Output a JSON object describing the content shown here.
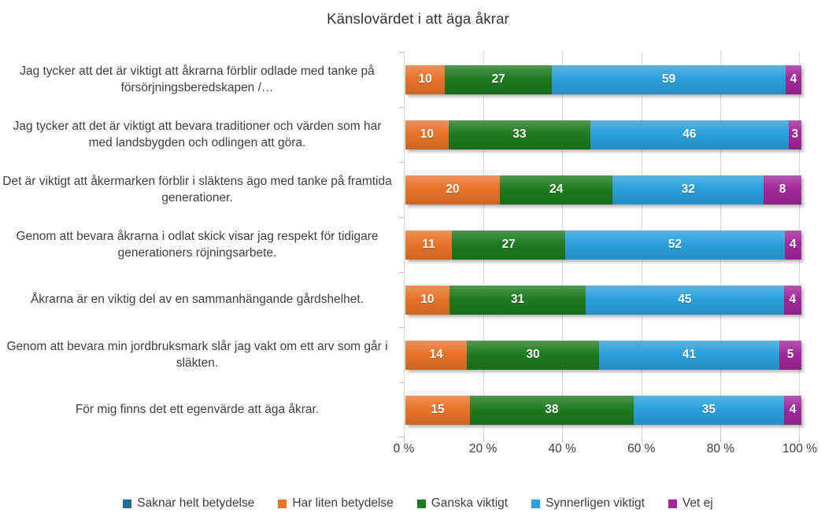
{
  "chart_data": {
    "type": "bar",
    "orientation": "horizontal",
    "stacked": true,
    "normalized_rows": true,
    "title": "Känslovärdet i att äga åkrar",
    "categories": [
      "Jag tycker att det är viktigt att åkrarna förblir odlade med tanke på försörjningsberedskapen /…",
      "Jag tycker att det är viktigt att bevara traditioner och värden som har med landsbygden och odlingen att göra.",
      "Det är viktigt att åkermarken förblir i släktens ägo med tanke på framtida generationer.",
      "Genom att bevara åkrarna i odlat skick visar jag respekt för tidigare generationers röjningsarbete.",
      "Åkrarna är en viktig del av en sammanhängande gårdshelhet.",
      "Genom att bevara min jordbruksmark slår jag vakt om ett arv som går i släkten.",
      "För mig finns det ett egenvärde att äga åkrar."
    ],
    "series": [
      {
        "name": "Har liten betydelse",
        "color": "#E9732A",
        "values": [
          10,
          10,
          20,
          11,
          10,
          14,
          15
        ]
      },
      {
        "name": "Ganska viktigt",
        "color": "#1E7B1E",
        "values": [
          27,
          33,
          24,
          27,
          31,
          30,
          38
        ]
      },
      {
        "name": "Synnerligen viktigt",
        "color": "#2BA0DC",
        "values": [
          59,
          46,
          32,
          52,
          45,
          41,
          35
        ]
      },
      {
        "name": "Vet ej",
        "color": "#A2289A",
        "values": [
          4,
          3,
          8,
          4,
          4,
          5,
          4
        ]
      }
    ],
    "legend": [
      {
        "label": "Saknar helt betydelse",
        "color": "#236B95"
      },
      {
        "label": "Har liten betydelse",
        "color": "#E9732A"
      },
      {
        "label": "Ganska viktigt",
        "color": "#1E7B1E"
      },
      {
        "label": "Synnerligen viktigt",
        "color": "#2BA0DC"
      },
      {
        "label": "Vet ej",
        "color": "#A2289A"
      }
    ],
    "legend_position": "bottom",
    "x_axis": {
      "tick_labels": [
        "0 %",
        "20 %",
        "40 %",
        "60 %",
        "80 %",
        "100 %"
      ],
      "min": 0,
      "max": 100,
      "gridlines": true
    },
    "grid_color": "#D9D9D9",
    "text_color": "#3F3F3F"
  }
}
